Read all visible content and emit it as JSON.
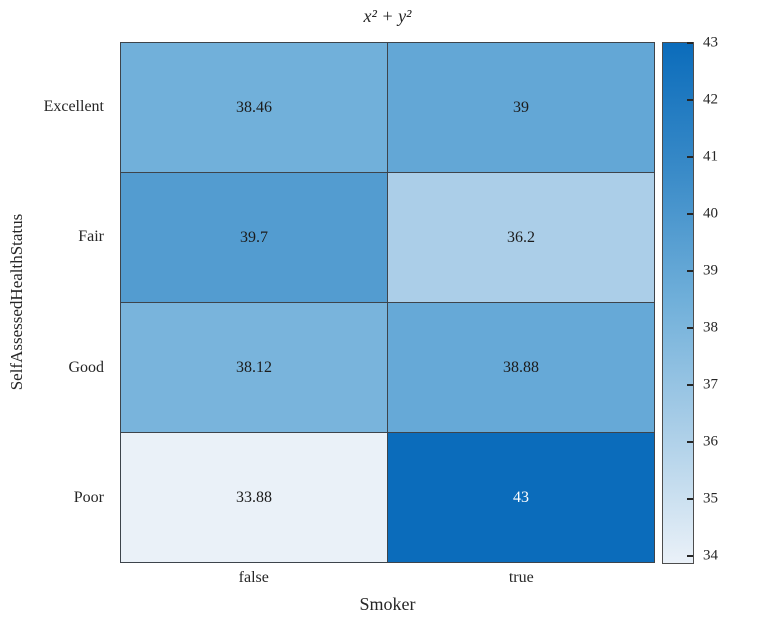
{
  "figure": {
    "background": "#ffffff"
  },
  "chart_data": {
    "type": "heatmap",
    "title": "x² + y²",
    "xlabel": "Smoker",
    "ylabel": "SelfAssessedHealthStatus",
    "x_categories": [
      "false",
      "true"
    ],
    "y_categories": [
      "Excellent",
      "Fair",
      "Good",
      "Poor"
    ],
    "values": [
      [
        38.46,
        39
      ],
      [
        39.7,
        36.2
      ],
      [
        38.12,
        38.88
      ],
      [
        33.88,
        43
      ]
    ],
    "cell_labels": [
      [
        "38.46",
        "39"
      ],
      [
        "39.7",
        "36.2"
      ],
      [
        "38.12",
        "38.88"
      ],
      [
        "33.88",
        "43"
      ]
    ],
    "color_axis_min": 33.88,
    "color_axis_max": 43,
    "colorbar_ticks": [
      34,
      35,
      36,
      37,
      38,
      39,
      40,
      41,
      42,
      43
    ],
    "colorbar_position": "right",
    "colormap_stops": [
      {
        "t": 0.0,
        "color": "#eaf1f8"
      },
      {
        "t": 0.25,
        "color": "#accfe8"
      },
      {
        "t": 0.5,
        "color": "#71b0da"
      },
      {
        "t": 0.75,
        "color": "#3a8bc8"
      },
      {
        "t": 1.0,
        "color": "#0b6cbb"
      }
    ],
    "grid_color": "#3d444b",
    "axis_text_color": "#262626",
    "cell_text_dark": "#1c1c1c",
    "cell_text_light": "#ffffff",
    "grid_on": true
  }
}
